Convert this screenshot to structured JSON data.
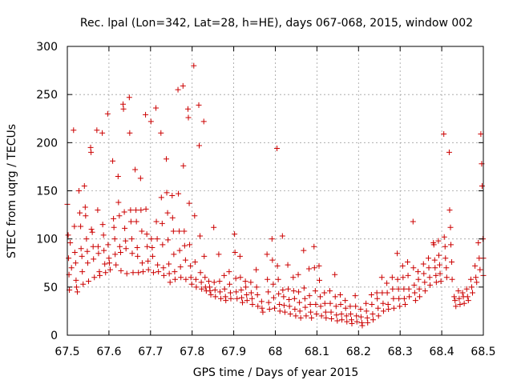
{
  "chart_data": {
    "type": "scatter",
    "title": "Rec. lpal (Lon=342, Lat=28, h=HE), days 067-068, 2015, window 002",
    "xlabel": "GPS time / Days of year 2015",
    "ylabel": "STEC from uqrg / TECUs",
    "xlim": [
      67.5,
      68.5
    ],
    "ylim": [
      0,
      300
    ],
    "x_ticks": [
      "67.5",
      "67.6",
      "67.7",
      "67.8",
      "67.9",
      "68",
      "68.1",
      "68.2",
      "68.3",
      "68.4",
      "68.5"
    ],
    "y_ticks": [
      "0",
      "50",
      "100",
      "150",
      "200",
      "250",
      "300"
    ],
    "marker": "+",
    "color": "#cc0000",
    "grid": "dashed",
    "legend": "none",
    "points": [
      [
        67.5,
        136
      ],
      [
        67.502,
        104
      ],
      [
        67.503,
        80
      ],
      [
        67.504,
        63
      ],
      [
        67.505,
        47
      ],
      [
        67.507,
        96
      ],
      [
        67.51,
        70
      ],
      [
        67.515,
        213
      ],
      [
        67.517,
        113
      ],
      [
        67.518,
        86
      ],
      [
        67.52,
        75
      ],
      [
        67.521,
        57
      ],
      [
        67.522,
        50
      ],
      [
        67.524,
        45
      ],
      [
        67.528,
        150
      ],
      [
        67.53,
        127
      ],
      [
        67.532,
        113
      ],
      [
        67.533,
        90
      ],
      [
        67.535,
        82
      ],
      [
        67.536,
        66
      ],
      [
        67.538,
        53
      ],
      [
        67.541,
        155
      ],
      [
        67.543,
        133
      ],
      [
        67.544,
        124
      ],
      [
        67.546,
        100
      ],
      [
        67.548,
        87
      ],
      [
        67.549,
        75
      ],
      [
        67.551,
        56
      ],
      [
        67.556,
        195
      ],
      [
        67.557,
        190
      ],
      [
        67.558,
        110
      ],
      [
        67.56,
        107
      ],
      [
        67.562,
        92
      ],
      [
        67.563,
        79
      ],
      [
        67.565,
        60
      ],
      [
        67.571,
        213
      ],
      [
        67.573,
        130
      ],
      [
        67.574,
        92
      ],
      [
        67.575,
        85
      ],
      [
        67.577,
        66
      ],
      [
        67.578,
        62
      ],
      [
        67.584,
        210
      ],
      [
        67.585,
        115
      ],
      [
        67.587,
        104
      ],
      [
        67.588,
        88
      ],
      [
        67.59,
        74
      ],
      [
        67.592,
        65
      ],
      [
        67.597,
        230
      ],
      [
        67.598,
        94
      ],
      [
        67.6,
        80
      ],
      [
        67.601,
        75
      ],
      [
        67.603,
        68
      ],
      [
        67.609,
        181
      ],
      [
        67.611,
        121
      ],
      [
        67.612,
        112
      ],
      [
        67.614,
        100
      ],
      [
        67.615,
        84
      ],
      [
        67.617,
        73
      ],
      [
        67.622,
        165
      ],
      [
        67.623,
        138
      ],
      [
        67.625,
        124
      ],
      [
        67.626,
        92
      ],
      [
        67.628,
        86
      ],
      [
        67.629,
        67
      ],
      [
        67.634,
        240
      ],
      [
        67.635,
        235
      ],
      [
        67.637,
        128
      ],
      [
        67.638,
        111
      ],
      [
        67.64,
        98
      ],
      [
        67.641,
        90
      ],
      [
        67.643,
        64
      ],
      [
        67.649,
        247
      ],
      [
        67.65,
        210
      ],
      [
        67.652,
        130
      ],
      [
        67.653,
        118
      ],
      [
        67.655,
        100
      ],
      [
        67.656,
        85
      ],
      [
        67.658,
        65
      ],
      [
        67.663,
        172
      ],
      [
        67.665,
        130
      ],
      [
        67.666,
        118
      ],
      [
        67.668,
        91
      ],
      [
        67.669,
        82
      ],
      [
        67.671,
        65
      ],
      [
        67.676,
        163
      ],
      [
        67.677,
        130
      ],
      [
        67.679,
        108
      ],
      [
        67.68,
        75
      ],
      [
        67.682,
        66
      ],
      [
        67.688,
        229
      ],
      [
        67.689,
        131
      ],
      [
        67.691,
        105
      ],
      [
        67.692,
        92
      ],
      [
        67.694,
        77
      ],
      [
        67.695,
        68
      ],
      [
        67.701,
        222
      ],
      [
        67.702,
        100
      ],
      [
        67.704,
        91
      ],
      [
        67.705,
        82
      ],
      [
        67.707,
        65
      ],
      [
        67.713,
        236
      ],
      [
        67.714,
        118
      ],
      [
        67.716,
        100
      ],
      [
        67.717,
        73
      ],
      [
        67.719,
        66
      ],
      [
        67.725,
        210
      ],
      [
        67.726,
        143
      ],
      [
        67.728,
        116
      ],
      [
        67.729,
        94
      ],
      [
        67.731,
        70
      ],
      [
        67.732,
        62
      ],
      [
        67.738,
        183
      ],
      [
        67.739,
        148
      ],
      [
        67.741,
        127
      ],
      [
        67.742,
        99
      ],
      [
        67.744,
        74
      ],
      [
        67.745,
        64
      ],
      [
        67.747,
        55
      ],
      [
        67.752,
        145
      ],
      [
        67.753,
        122
      ],
      [
        67.755,
        108
      ],
      [
        67.756,
        84
      ],
      [
        67.758,
        66
      ],
      [
        67.759,
        58
      ],
      [
        67.766,
        255
      ],
      [
        67.767,
        147
      ],
      [
        67.769,
        108
      ],
      [
        67.77,
        88
      ],
      [
        67.772,
        71
      ],
      [
        67.773,
        60
      ],
      [
        67.778,
        259
      ],
      [
        67.779,
        176
      ],
      [
        67.781,
        108
      ],
      [
        67.782,
        93
      ],
      [
        67.784,
        78
      ],
      [
        67.785,
        58
      ],
      [
        67.79,
        235
      ],
      [
        67.791,
        226
      ],
      [
        67.793,
        137
      ],
      [
        67.794,
        94
      ],
      [
        67.796,
        72
      ],
      [
        67.797,
        60
      ],
      [
        67.799,
        53
      ],
      [
        67.804,
        280
      ],
      [
        67.806,
        124
      ],
      [
        67.807,
        76
      ],
      [
        67.809,
        58
      ],
      [
        67.81,
        50
      ],
      [
        67.816,
        239
      ],
      [
        67.817,
        197
      ],
      [
        67.819,
        103
      ],
      [
        67.82,
        65
      ],
      [
        67.822,
        55
      ],
      [
        67.823,
        48
      ],
      [
        67.828,
        222
      ],
      [
        67.829,
        82
      ],
      [
        67.831,
        60
      ],
      [
        67.832,
        50
      ],
      [
        67.834,
        46
      ],
      [
        67.84,
        56
      ],
      [
        67.842,
        50
      ],
      [
        67.843,
        46
      ],
      [
        67.845,
        42
      ],
      [
        67.852,
        112
      ],
      [
        67.853,
        55
      ],
      [
        67.855,
        47
      ],
      [
        67.856,
        40
      ],
      [
        67.864,
        84
      ],
      [
        67.866,
        56
      ],
      [
        67.867,
        45
      ],
      [
        67.869,
        38
      ],
      [
        67.877,
        62
      ],
      [
        67.878,
        48
      ],
      [
        67.88,
        40
      ],
      [
        67.881,
        36
      ],
      [
        67.889,
        66
      ],
      [
        67.89,
        53
      ],
      [
        67.892,
        44
      ],
      [
        67.893,
        38
      ],
      [
        67.902,
        105
      ],
      [
        67.903,
        86
      ],
      [
        67.905,
        59
      ],
      [
        67.906,
        45
      ],
      [
        67.908,
        38
      ],
      [
        67.915,
        82
      ],
      [
        67.916,
        60
      ],
      [
        67.918,
        47
      ],
      [
        67.919,
        39
      ],
      [
        67.921,
        34
      ],
      [
        67.928,
        56
      ],
      [
        67.929,
        50
      ],
      [
        67.931,
        42
      ],
      [
        67.932,
        36
      ],
      [
        67.941,
        55
      ],
      [
        67.942,
        44
      ],
      [
        67.944,
        38
      ],
      [
        67.945,
        32
      ],
      [
        67.954,
        68
      ],
      [
        67.955,
        50
      ],
      [
        67.957,
        42
      ],
      [
        67.958,
        30
      ],
      [
        67.967,
        35
      ],
      [
        67.968,
        28
      ],
      [
        67.97,
        24
      ],
      [
        67.98,
        84
      ],
      [
        67.981,
        58
      ],
      [
        67.983,
        45
      ],
      [
        67.984,
        34
      ],
      [
        67.986,
        27
      ],
      [
        67.992,
        100
      ],
      [
        67.993,
        78
      ],
      [
        67.995,
        53
      ],
      [
        67.996,
        39
      ],
      [
        67.998,
        28
      ],
      [
        68.004,
        194
      ],
      [
        68.005,
        72
      ],
      [
        68.007,
        58
      ],
      [
        68.008,
        43
      ],
      [
        68.01,
        32
      ],
      [
        68.011,
        25
      ],
      [
        68.017,
        103
      ],
      [
        68.018,
        47
      ],
      [
        68.02,
        40
      ],
      [
        68.021,
        31
      ],
      [
        68.023,
        24
      ],
      [
        68.03,
        73
      ],
      [
        68.031,
        48
      ],
      [
        68.033,
        37
      ],
      [
        68.034,
        30
      ],
      [
        68.036,
        22
      ],
      [
        68.043,
        60
      ],
      [
        68.044,
        46
      ],
      [
        68.046,
        38
      ],
      [
        68.047,
        27
      ],
      [
        68.049,
        20
      ],
      [
        68.055,
        63
      ],
      [
        68.056,
        45
      ],
      [
        68.058,
        34
      ],
      [
        68.059,
        25
      ],
      [
        68.061,
        18
      ],
      [
        68.068,
        88
      ],
      [
        68.069,
        49
      ],
      [
        68.071,
        38
      ],
      [
        68.072,
        29
      ],
      [
        68.074,
        20
      ],
      [
        68.081,
        69
      ],
      [
        68.082,
        41
      ],
      [
        68.084,
        32
      ],
      [
        68.085,
        24
      ],
      [
        68.087,
        18
      ],
      [
        68.093,
        92
      ],
      [
        68.094,
        70
      ],
      [
        68.096,
        46
      ],
      [
        68.097,
        32
      ],
      [
        68.099,
        22
      ],
      [
        68.105,
        72
      ],
      [
        68.106,
        57
      ],
      [
        68.108,
        40
      ],
      [
        68.109,
        30
      ],
      [
        68.111,
        20
      ],
      [
        68.118,
        44
      ],
      [
        68.119,
        33
      ],
      [
        68.121,
        24
      ],
      [
        68.122,
        18
      ],
      [
        68.131,
        46
      ],
      [
        68.132,
        33
      ],
      [
        68.134,
        24
      ],
      [
        68.135,
        17
      ],
      [
        68.143,
        63
      ],
      [
        68.144,
        40
      ],
      [
        68.146,
        30
      ],
      [
        68.147,
        21
      ],
      [
        68.149,
        15
      ],
      [
        68.156,
        42
      ],
      [
        68.157,
        32
      ],
      [
        68.159,
        22
      ],
      [
        68.16,
        16
      ],
      [
        68.168,
        36
      ],
      [
        68.169,
        28
      ],
      [
        68.171,
        20
      ],
      [
        68.172,
        14
      ],
      [
        68.18,
        30
      ],
      [
        68.181,
        22
      ],
      [
        68.183,
        16
      ],
      [
        68.184,
        12
      ],
      [
        68.192,
        41
      ],
      [
        68.193,
        30
      ],
      [
        68.195,
        20
      ],
      [
        68.196,
        14
      ],
      [
        68.205,
        27
      ],
      [
        68.206,
        19
      ],
      [
        68.208,
        13
      ],
      [
        68.209,
        10
      ],
      [
        68.218,
        33
      ],
      [
        68.219,
        25
      ],
      [
        68.221,
        18
      ],
      [
        68.222,
        13
      ],
      [
        68.231,
        42
      ],
      [
        68.232,
        32
      ],
      [
        68.234,
        22
      ],
      [
        68.235,
        16
      ],
      [
        68.244,
        44
      ],
      [
        68.245,
        38
      ],
      [
        68.247,
        28
      ],
      [
        68.248,
        20
      ],
      [
        68.256,
        60
      ],
      [
        68.257,
        44
      ],
      [
        68.259,
        33
      ],
      [
        68.26,
        25
      ],
      [
        68.268,
        54
      ],
      [
        68.269,
        44
      ],
      [
        68.271,
        32
      ],
      [
        68.272,
        27
      ],
      [
        68.281,
        60
      ],
      [
        68.282,
        48
      ],
      [
        68.284,
        38
      ],
      [
        68.285,
        28
      ],
      [
        68.293,
        85
      ],
      [
        68.294,
        58
      ],
      [
        68.296,
        48
      ],
      [
        68.297,
        38
      ],
      [
        68.299,
        30
      ],
      [
        68.306,
        72
      ],
      [
        68.307,
        60
      ],
      [
        68.309,
        48
      ],
      [
        68.31,
        38
      ],
      [
        68.312,
        32
      ],
      [
        68.318,
        76
      ],
      [
        68.319,
        62
      ],
      [
        68.321,
        48
      ],
      [
        68.322,
        40
      ],
      [
        68.331,
        118
      ],
      [
        68.332,
        70
      ],
      [
        68.334,
        52
      ],
      [
        68.335,
        44
      ],
      [
        68.337,
        36
      ],
      [
        68.343,
        66
      ],
      [
        68.344,
        58
      ],
      [
        68.346,
        48
      ],
      [
        68.347,
        40
      ],
      [
        68.356,
        74
      ],
      [
        68.357,
        64
      ],
      [
        68.359,
        55
      ],
      [
        68.36,
        46
      ],
      [
        68.368,
        80
      ],
      [
        68.369,
        70
      ],
      [
        68.371,
        60
      ],
      [
        68.372,
        52
      ],
      [
        68.38,
        96
      ],
      [
        68.381,
        94
      ],
      [
        68.383,
        78
      ],
      [
        68.384,
        70
      ],
      [
        68.386,
        62
      ],
      [
        68.387,
        55
      ],
      [
        68.392,
        98
      ],
      [
        68.393,
        83
      ],
      [
        68.395,
        73
      ],
      [
        68.396,
        64
      ],
      [
        68.398,
        56
      ],
      [
        68.405,
        209
      ],
      [
        68.406,
        102
      ],
      [
        68.408,
        92
      ],
      [
        68.409,
        80
      ],
      [
        68.411,
        70
      ],
      [
        68.412,
        60
      ],
      [
        68.418,
        190
      ],
      [
        68.419,
        130
      ],
      [
        68.421,
        112
      ],
      [
        68.422,
        94
      ],
      [
        68.424,
        76
      ],
      [
        68.425,
        58
      ],
      [
        68.43,
        40
      ],
      [
        68.432,
        36
      ],
      [
        68.434,
        30
      ],
      [
        68.44,
        46
      ],
      [
        68.442,
        38
      ],
      [
        68.444,
        32
      ],
      [
        68.45,
        44
      ],
      [
        68.452,
        40
      ],
      [
        68.454,
        33
      ],
      [
        68.46,
        48
      ],
      [
        68.462,
        40
      ],
      [
        68.464,
        36
      ],
      [
        68.47,
        58
      ],
      [
        68.472,
        50
      ],
      [
        68.474,
        44
      ],
      [
        68.48,
        72
      ],
      [
        68.482,
        60
      ],
      [
        68.484,
        55
      ],
      [
        68.488,
        96
      ],
      [
        68.49,
        80
      ],
      [
        68.492,
        68
      ],
      [
        68.494,
        209
      ],
      [
        68.496,
        178
      ],
      [
        68.497,
        155
      ],
      [
        68.499,
        100
      ],
      [
        68.5,
        80
      ],
      [
        68.5,
        62
      ]
    ]
  }
}
